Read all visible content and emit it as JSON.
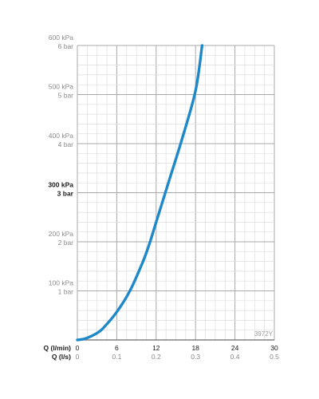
{
  "chart_data": {
    "type": "line",
    "code": "3972Y",
    "x_rows": [
      {
        "label": "Q (l/min)",
        "ticks": [
          "0",
          "6",
          "12",
          "18",
          "24",
          "30"
        ]
      },
      {
        "label": "Q (l/s)",
        "ticks": [
          "0",
          "0.1",
          "0.2",
          "0.3",
          "0.4",
          "0.5"
        ]
      }
    ],
    "xlim": [
      0,
      30
    ],
    "ylim": [
      0,
      600
    ],
    "y_ticks": [
      {
        "value": 100,
        "kpa": "100 kPa",
        "bar": "1 bar",
        "bold": false
      },
      {
        "value": 200,
        "kpa": "200 kPa",
        "bar": "2 bar",
        "bold": false
      },
      {
        "value": 300,
        "kpa": "300 kPa",
        "bar": "3 bar",
        "bold": true
      },
      {
        "value": 400,
        "kpa": "400 kPa",
        "bar": "4 bar",
        "bold": false
      },
      {
        "value": 500,
        "kpa": "500 kPa",
        "bar": "5 bar",
        "bold": false
      },
      {
        "value": 600,
        "kpa": "600 kPa",
        "bar": "6 bar",
        "bold": false
      }
    ],
    "grid": true,
    "series": [
      {
        "color": "#1e88c8",
        "x": [
          0,
          1,
          2,
          3,
          4,
          6,
          8,
          10,
          11,
          12,
          14,
          16,
          18,
          19
        ],
        "y": [
          0,
          2,
          7,
          14,
          25,
          57,
          100,
          160,
          197,
          240,
          326,
          412,
          508,
          600
        ]
      }
    ]
  }
}
